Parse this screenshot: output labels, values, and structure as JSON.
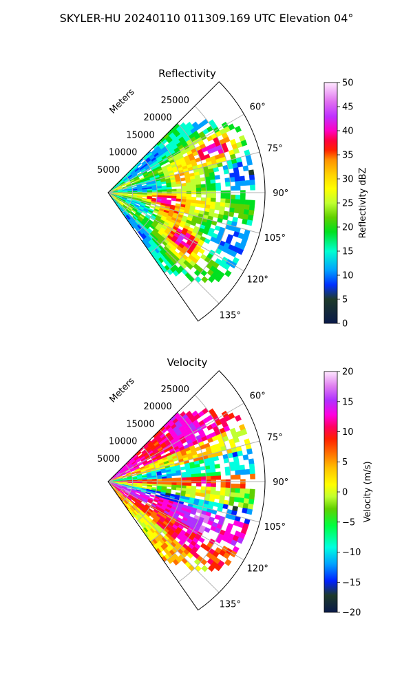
{
  "figure": {
    "title": "SKYLER-HU  20240110  011309.169 UTC Elevation 04°"
  },
  "chart_data": [
    {
      "type": "heatmap",
      "projection": "polar-sector",
      "title": "Reflectivity",
      "range_axis_label": "Meters",
      "range_ticks": [
        "5000",
        "10000",
        "15000",
        "20000",
        "25000"
      ],
      "range_values": [
        5000,
        10000,
        15000,
        20000,
        25000
      ],
      "range_max": 32000,
      "azimuth_ticks": [
        "60°",
        "75°",
        "90°",
        "105°",
        "120°",
        "135°"
      ],
      "azimuth_values": [
        60,
        75,
        90,
        105,
        120,
        135
      ],
      "azimuth_range": [
        45,
        145
      ],
      "grid": true,
      "colorbar": {
        "label": "Reflectivity dBZ",
        "ticks": [
          "0",
          "5",
          "10",
          "15",
          "20",
          "25",
          "30",
          "35",
          "40",
          "45",
          "50"
        ],
        "tick_values": [
          0,
          5,
          10,
          15,
          20,
          25,
          30,
          35,
          40,
          45,
          50
        ],
        "min": 0,
        "max": 50
      },
      "field_summary": {
        "dominant_range_dbz": [
          15,
          42
        ],
        "cores": [
          {
            "azimuth": 68,
            "range_m": 24000,
            "value": 38
          },
          {
            "azimuth": 80,
            "range_m": 15000,
            "value": 38
          },
          {
            "azimuth": 97,
            "range_m": 11000,
            "value": 40
          },
          {
            "azimuth": 110,
            "range_m": 13000,
            "value": 42
          },
          {
            "azimuth": 120,
            "range_m": 18000,
            "value": 38
          }
        ]
      }
    },
    {
      "type": "heatmap",
      "projection": "polar-sector",
      "title": "Velocity",
      "range_axis_label": "Meters",
      "range_ticks": [
        "5000",
        "10000",
        "15000",
        "20000",
        "25000"
      ],
      "range_values": [
        5000,
        10000,
        15000,
        20000,
        25000
      ],
      "range_max": 32000,
      "azimuth_ticks": [
        "60°",
        "75°",
        "90°",
        "105°",
        "120°",
        "135°"
      ],
      "azimuth_values": [
        60,
        75,
        90,
        105,
        120,
        135
      ],
      "azimuth_range": [
        45,
        145
      ],
      "grid": true,
      "colorbar": {
        "label": "Velocity (m/s)",
        "ticks": [
          "−20",
          "−15",
          "−10",
          "−5",
          "0",
          "5",
          "10",
          "15",
          "20"
        ],
        "tick_values": [
          -20,
          -15,
          -10,
          -5,
          0,
          5,
          10,
          15,
          20
        ],
        "min": -20,
        "max": 20
      },
      "field_summary": {
        "bands": [
          {
            "azimuth": 62,
            "value": 12
          },
          {
            "azimuth": 72,
            "value": 3
          },
          {
            "azimuth": 82,
            "value": -8
          },
          {
            "azimuth": 90,
            "value": 8
          },
          {
            "azimuth": 97,
            "value": 0
          },
          {
            "azimuth": 103,
            "value": -11
          },
          {
            "azimuth": 112,
            "value": 15
          },
          {
            "azimuth": 125,
            "value": 10
          },
          {
            "azimuth": 136,
            "value": 3
          }
        ]
      }
    }
  ]
}
